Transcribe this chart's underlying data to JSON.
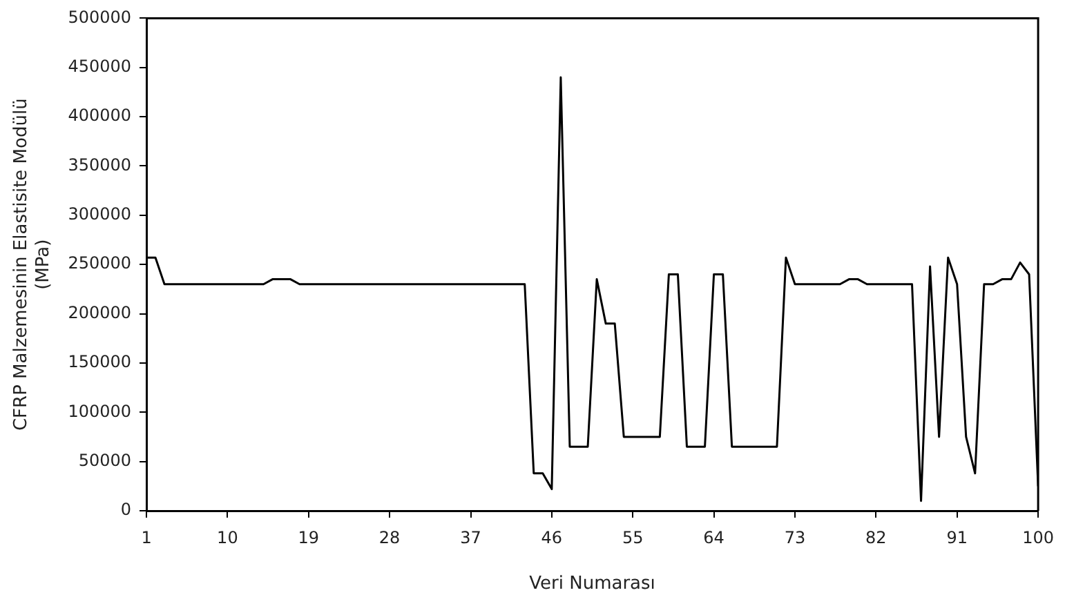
{
  "chart_data": {
    "type": "line",
    "xlabel": "Veri Numarası",
    "ylabel": "CFRP Malzemesinin Elastisite Modülü (MPa)",
    "x": [
      1,
      2,
      3,
      4,
      5,
      6,
      7,
      8,
      9,
      10,
      11,
      12,
      13,
      14,
      15,
      16,
      17,
      18,
      19,
      20,
      21,
      22,
      23,
      24,
      25,
      26,
      27,
      28,
      29,
      30,
      31,
      32,
      33,
      34,
      35,
      36,
      37,
      38,
      39,
      40,
      41,
      42,
      43,
      44,
      45,
      46,
      47,
      48,
      49,
      50,
      51,
      52,
      53,
      54,
      55,
      56,
      57,
      58,
      59,
      60,
      61,
      62,
      63,
      64,
      65,
      66,
      67,
      68,
      69,
      70,
      71,
      72,
      73,
      74,
      75,
      76,
      77,
      78,
      79,
      80,
      81,
      82,
      83,
      84,
      85,
      86,
      87,
      88,
      89,
      90,
      91,
      92,
      93,
      94,
      95,
      96,
      97,
      98,
      99,
      100
    ],
    "series": [
      {
        "color": "#000000",
        "values": [
          257000,
          257000,
          230000,
          230000,
          230000,
          230000,
          230000,
          230000,
          230000,
          230000,
          230000,
          230000,
          230000,
          230000,
          235000,
          235000,
          235000,
          230000,
          230000,
          230000,
          230000,
          230000,
          230000,
          230000,
          230000,
          230000,
          230000,
          230000,
          230000,
          230000,
          230000,
          230000,
          230000,
          230000,
          230000,
          230000,
          230000,
          230000,
          230000,
          230000,
          230000,
          230000,
          230000,
          38000,
          38000,
          22000,
          440000,
          65000,
          65000,
          65000,
          235000,
          190000,
          190000,
          75000,
          75000,
          75000,
          75000,
          75000,
          240000,
          240000,
          65000,
          65000,
          65000,
          240000,
          240000,
          65000,
          65000,
          65000,
          65000,
          65000,
          65000,
          257000,
          230000,
          230000,
          230000,
          230000,
          230000,
          230000,
          235000,
          235000,
          230000,
          230000,
          230000,
          230000,
          230000,
          230000,
          10000,
          248000,
          75000,
          257000,
          230000,
          75000,
          38000,
          230000,
          230000,
          235000,
          235000,
          252000,
          240000,
          25000
        ]
      }
    ],
    "xlim": [
      1,
      100
    ],
    "xticks": [
      1,
      10,
      19,
      28,
      37,
      46,
      55,
      64,
      73,
      82,
      91,
      100
    ],
    "ylim": [
      0,
      500000
    ],
    "yticks": [
      0,
      50000,
      100000,
      150000,
      200000,
      250000,
      300000,
      350000,
      400000,
      450000,
      500000
    ],
    "grid": false,
    "legend": false,
    "marker": "none",
    "line_style": "solid"
  }
}
